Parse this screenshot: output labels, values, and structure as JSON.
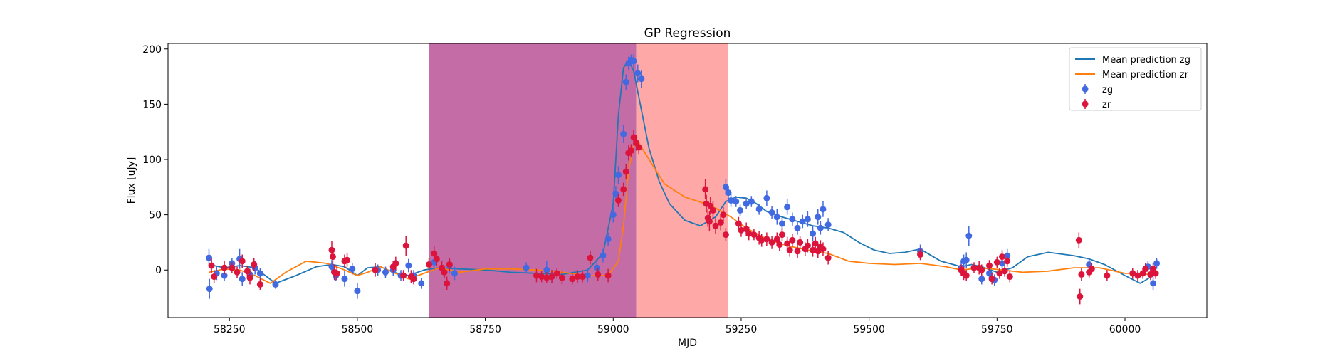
{
  "chart_data": {
    "type": "scatter",
    "title": "GP Regression",
    "xlabel": "MJD",
    "ylabel": "Flux [uJy]",
    "xlim": [
      58130,
      60160
    ],
    "ylim": [
      -43,
      205
    ],
    "xticks": [
      58250,
      58500,
      58750,
      59000,
      59250,
      59500,
      59750,
      60000
    ],
    "yticks": [
      0,
      50,
      100,
      150,
      200
    ],
    "grid": false,
    "legend_position": "top-right",
    "spans": [
      {
        "x0": 58640,
        "x1": 59045,
        "color": "#c46ca6"
      },
      {
        "x0": 59045,
        "x1": 59225,
        "color": "#ffa8a8"
      }
    ],
    "lines": [
      {
        "name": "Mean prediction zg",
        "color": "#1f77b4",
        "x": [
          58210,
          58240,
          58270,
          58300,
          58340,
          58380,
          58420,
          58450,
          58475,
          58500,
          58520,
          58545,
          58570,
          58600,
          58630,
          58660,
          58700,
          58750,
          58800,
          58850,
          58900,
          58950,
          58980,
          59000,
          59010,
          59020,
          59030,
          59040,
          59055,
          59070,
          59090,
          59110,
          59140,
          59170,
          59200,
          59220,
          59240,
          59260,
          59280,
          59300,
          59330,
          59360,
          59390,
          59420,
          59450,
          59480,
          59510,
          59540,
          59570,
          59600,
          59640,
          59680,
          59700,
          59720,
          59750,
          59780,
          59810,
          59850,
          59900,
          59930,
          59960,
          60000,
          60030,
          60062
        ],
        "y": [
          5,
          2,
          4,
          2,
          -12,
          -5,
          3,
          5,
          3,
          -5,
          2,
          3,
          -2,
          -5,
          0,
          2,
          1,
          0,
          -2,
          -3,
          -4,
          0,
          15,
          60,
          140,
          183,
          190,
          180,
          145,
          110,
          80,
          60,
          45,
          40,
          48,
          62,
          66,
          65,
          60,
          53,
          48,
          44,
          40,
          38,
          34,
          25,
          18,
          15,
          16,
          19,
          8,
          3,
          5,
          3,
          -2,
          2,
          12,
          16,
          13,
          10,
          5,
          -5,
          -12,
          -3
        ]
      },
      {
        "name": "Mean prediction zr",
        "color": "#ff7f0e",
        "x": [
          58210,
          58240,
          58270,
          58300,
          58330,
          58360,
          58400,
          58440,
          58470,
          58500,
          58520,
          58545,
          58570,
          58600,
          58630,
          58660,
          58700,
          58750,
          58800,
          58850,
          58900,
          58950,
          58990,
          59010,
          59020,
          59030,
          59040,
          59050,
          59070,
          59100,
          59140,
          59180,
          59200,
          59230,
          59260,
          59300,
          59340,
          59380,
          59420,
          59460,
          59500,
          59550,
          59600,
          59650,
          59680,
          59720,
          59760,
          59800,
          59850,
          59900,
          59950,
          60000,
          60030,
          60062
        ],
        "y": [
          -2,
          1,
          0,
          -5,
          -12,
          -2,
          8,
          6,
          1,
          -5,
          -2,
          3,
          -2,
          -8,
          -3,
          2,
          -2,
          1,
          1,
          0,
          -2,
          -5,
          -5,
          8,
          40,
          90,
          112,
          115,
          100,
          78,
          66,
          60,
          56,
          48,
          38,
          28,
          22,
          18,
          15,
          8,
          6,
          5,
          6,
          3,
          0,
          2,
          0,
          -2,
          -1,
          2,
          2,
          -3,
          -3,
          -5
        ]
      }
    ],
    "series": [
      {
        "name": "zg",
        "color": "#4169e1",
        "points": [
          [
            58210,
            11,
            8
          ],
          [
            58211,
            -17,
            9
          ],
          [
            58225,
            -3,
            6
          ],
          [
            58240,
            -5,
            5
          ],
          [
            58255,
            6,
            5
          ],
          [
            58270,
            10,
            9
          ],
          [
            58275,
            -8,
            6
          ],
          [
            58290,
            -4,
            5
          ],
          [
            58300,
            2,
            6
          ],
          [
            58310,
            -3,
            5
          ],
          [
            58340,
            -13,
            4
          ],
          [
            58450,
            3,
            6
          ],
          [
            58458,
            -5,
            5
          ],
          [
            58475,
            -8,
            7
          ],
          [
            58490,
            1,
            5
          ],
          [
            58500,
            -19,
            7
          ],
          [
            58540,
            0,
            5
          ],
          [
            58555,
            -2,
            5
          ],
          [
            58570,
            0,
            5
          ],
          [
            58585,
            -5,
            5
          ],
          [
            58600,
            4,
            6
          ],
          [
            58610,
            -5,
            5
          ],
          [
            58625,
            -12,
            5
          ],
          [
            58650,
            7,
            7
          ],
          [
            58680,
            4,
            7
          ],
          [
            58690,
            -3,
            6
          ],
          [
            58830,
            2,
            5
          ],
          [
            58870,
            0,
            8
          ],
          [
            58880,
            -6,
            6
          ],
          [
            58950,
            -5,
            6
          ],
          [
            58968,
            2,
            6
          ],
          [
            58980,
            13,
            6
          ],
          [
            58990,
            28,
            6
          ],
          [
            59000,
            50,
            7
          ],
          [
            59005,
            69,
            7
          ],
          [
            59010,
            86,
            8
          ],
          [
            59020,
            123,
            8
          ],
          [
            59025,
            170,
            7
          ],
          [
            59030,
            187,
            6
          ],
          [
            59035,
            190,
            5
          ],
          [
            59040,
            189,
            6
          ],
          [
            59048,
            178,
            8
          ],
          [
            59055,
            173,
            8
          ],
          [
            59220,
            75,
            7
          ],
          [
            59225,
            70,
            6
          ],
          [
            59230,
            63,
            6
          ],
          [
            59240,
            62,
            5
          ],
          [
            59248,
            54,
            5
          ],
          [
            59260,
            60,
            5
          ],
          [
            59270,
            62,
            5
          ],
          [
            59285,
            55,
            5
          ],
          [
            59300,
            65,
            7
          ],
          [
            59310,
            52,
            6
          ],
          [
            59320,
            48,
            7
          ],
          [
            59330,
            42,
            6
          ],
          [
            59340,
            57,
            7
          ],
          [
            59350,
            46,
            6
          ],
          [
            59360,
            38,
            6
          ],
          [
            59370,
            44,
            6
          ],
          [
            59380,
            46,
            7
          ],
          [
            59390,
            33,
            7
          ],
          [
            59400,
            48,
            7
          ],
          [
            59405,
            38,
            6
          ],
          [
            59410,
            55,
            7
          ],
          [
            59420,
            41,
            6
          ],
          [
            59600,
            17,
            6
          ],
          [
            59680,
            2,
            6
          ],
          [
            59685,
            8,
            6
          ],
          [
            59690,
            9,
            7
          ],
          [
            59695,
            31,
            9
          ],
          [
            59720,
            -8,
            5
          ],
          [
            59735,
            -3,
            6
          ],
          [
            59745,
            -9,
            5
          ],
          [
            59760,
            6,
            6
          ],
          [
            59770,
            13,
            6
          ],
          [
            59930,
            5,
            5
          ],
          [
            60045,
            3,
            5
          ],
          [
            60055,
            -12,
            6
          ],
          [
            60062,
            6,
            5
          ]
        ]
      },
      {
        "name": "zr",
        "color": "#dc143c",
        "points": [
          [
            58215,
            4,
            7
          ],
          [
            58220,
            -6,
            6
          ],
          [
            58240,
            2,
            6
          ],
          [
            58255,
            2,
            5
          ],
          [
            58265,
            -2,
            5
          ],
          [
            58275,
            8,
            6
          ],
          [
            58285,
            -1,
            5
          ],
          [
            58290,
            -7,
            6
          ],
          [
            58298,
            5,
            6
          ],
          [
            58310,
            -13,
            5
          ],
          [
            58450,
            18,
            8
          ],
          [
            58452,
            12,
            8
          ],
          [
            58455,
            -2,
            7
          ],
          [
            58460,
            -3,
            6
          ],
          [
            58475,
            8,
            6
          ],
          [
            58480,
            9,
            6
          ],
          [
            58535,
            0,
            6
          ],
          [
            58570,
            3,
            5
          ],
          [
            58575,
            6,
            6
          ],
          [
            58590,
            -5,
            5
          ],
          [
            58595,
            22,
            9
          ],
          [
            58605,
            -6,
            6
          ],
          [
            58610,
            -8,
            5
          ],
          [
            58640,
            5,
            6
          ],
          [
            58650,
            15,
            7
          ],
          [
            58655,
            10,
            6
          ],
          [
            58665,
            2,
            6
          ],
          [
            58670,
            -2,
            5
          ],
          [
            58675,
            -12,
            6
          ],
          [
            58680,
            5,
            6
          ],
          [
            58850,
            -5,
            6
          ],
          [
            58860,
            -6,
            5
          ],
          [
            58870,
            -7,
            5
          ],
          [
            58880,
            -6,
            6
          ],
          [
            58890,
            -3,
            5
          ],
          [
            58900,
            -7,
            6
          ],
          [
            58920,
            -8,
            5
          ],
          [
            58930,
            -6,
            6
          ],
          [
            58940,
            -6,
            5
          ],
          [
            58955,
            11,
            6
          ],
          [
            58970,
            -4,
            6
          ],
          [
            58990,
            -5,
            6
          ],
          [
            59010,
            63,
            6
          ],
          [
            59020,
            73,
            6
          ],
          [
            59025,
            89,
            7
          ],
          [
            59030,
            106,
            7
          ],
          [
            59035,
            108,
            6
          ],
          [
            59040,
            120,
            7
          ],
          [
            59045,
            115,
            7
          ],
          [
            59050,
            111,
            6
          ],
          [
            59180,
            73,
            9
          ],
          [
            59182,
            60,
            8
          ],
          [
            59185,
            47,
            8
          ],
          [
            59188,
            44,
            9
          ],
          [
            59190,
            58,
            8
          ],
          [
            59195,
            54,
            8
          ],
          [
            59200,
            40,
            7
          ],
          [
            59210,
            43,
            7
          ],
          [
            59215,
            50,
            7
          ],
          [
            59220,
            32,
            6
          ],
          [
            59245,
            42,
            6
          ],
          [
            59250,
            36,
            6
          ],
          [
            59260,
            37,
            6
          ],
          [
            59265,
            33,
            6
          ],
          [
            59275,
            32,
            5
          ],
          [
            59285,
            29,
            6
          ],
          [
            59290,
            27,
            6
          ],
          [
            59300,
            28,
            6
          ],
          [
            59310,
            25,
            6
          ],
          [
            59320,
            28,
            6
          ],
          [
            59325,
            23,
            6
          ],
          [
            59330,
            32,
            6
          ],
          [
            59340,
            24,
            6
          ],
          [
            59345,
            18,
            6
          ],
          [
            59350,
            27,
            6
          ],
          [
            59360,
            17,
            6
          ],
          [
            59365,
            25,
            6
          ],
          [
            59375,
            19,
            6
          ],
          [
            59380,
            22,
            6
          ],
          [
            59390,
            18,
            6
          ],
          [
            59395,
            24,
            6
          ],
          [
            59400,
            17,
            6
          ],
          [
            59405,
            21,
            6
          ],
          [
            59410,
            19,
            6
          ],
          [
            59420,
            11,
            6
          ],
          [
            59600,
            14,
            5
          ],
          [
            59680,
            0,
            5
          ],
          [
            59685,
            -3,
            6
          ],
          [
            59690,
            -5,
            5
          ],
          [
            59705,
            2,
            5
          ],
          [
            59715,
            2,
            6
          ],
          [
            59720,
            0,
            5
          ],
          [
            59735,
            4,
            5
          ],
          [
            59740,
            -8,
            5
          ],
          [
            59750,
            7,
            5
          ],
          [
            59755,
            -3,
            5
          ],
          [
            59760,
            12,
            6
          ],
          [
            59765,
            -1,
            5
          ],
          [
            59770,
            8,
            5
          ],
          [
            59775,
            -6,
            5
          ],
          [
            59910,
            27,
            7
          ],
          [
            59912,
            -24,
            7
          ],
          [
            59915,
            -4,
            6
          ],
          [
            59930,
            -2,
            5
          ],
          [
            59935,
            1,
            5
          ],
          [
            59965,
            -5,
            5
          ],
          [
            60015,
            -3,
            5
          ],
          [
            60025,
            -5,
            5
          ],
          [
            60035,
            -3,
            5
          ],
          [
            60040,
            1,
            5
          ],
          [
            60050,
            -4,
            5
          ],
          [
            60055,
            1,
            5
          ],
          [
            60060,
            -3,
            5
          ]
        ]
      }
    ]
  }
}
